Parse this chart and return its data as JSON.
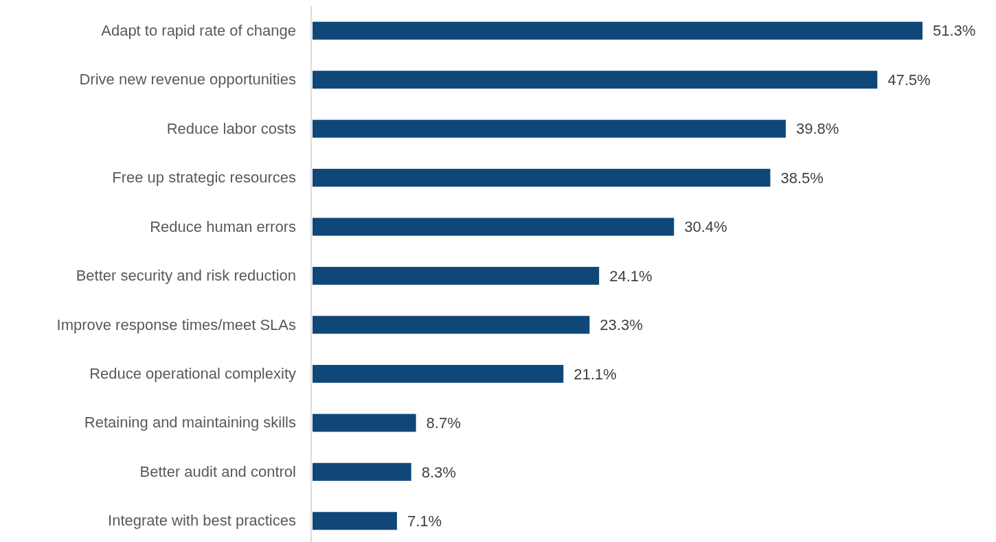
{
  "chart_data": {
    "type": "bar",
    "orientation": "horizontal",
    "categories": [
      "Adapt to rapid rate of change",
      "Drive new revenue opportunities",
      "Reduce labor costs",
      "Free up strategic resources",
      "Reduce human errors",
      "Better security and risk reduction",
      "Improve response times/meet SLAs",
      "Reduce operational complexity",
      "Retaining and maintaining skills",
      "Better audit and control",
      "Integrate with best practices"
    ],
    "values": [
      51.3,
      47.5,
      39.8,
      38.5,
      30.4,
      24.1,
      23.3,
      21.1,
      8.7,
      8.3,
      7.1
    ],
    "value_labels": [
      "51.3%",
      "47.5%",
      "39.8%",
      "38.5%",
      "30.4%",
      "24.1%",
      "23.3%",
      "21.1%",
      "8.7%",
      "8.3%",
      "7.1%"
    ],
    "color": "#0f4779"
  }
}
